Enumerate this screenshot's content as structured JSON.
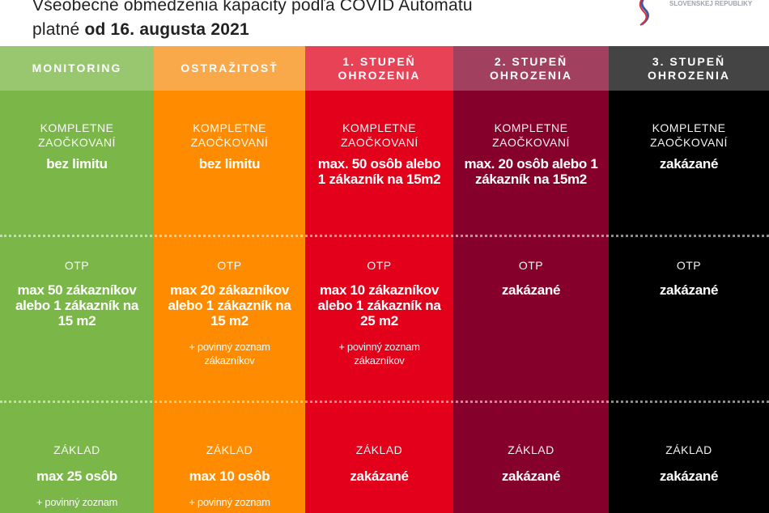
{
  "title": {
    "line1": "Všeobecné obmedzenia kapacity podľa COVID Automatu",
    "line2_prefix": "platné ",
    "line2_bold": "od 16. augusta 2021"
  },
  "logo": {
    "text": "SLOVENSKEJ REPUBLIKY"
  },
  "columns": [
    {
      "header": "MONITORING",
      "header_color": "#98c76f",
      "body_color": "#7ab648",
      "s1_label": "KOMPLETNE ZAOČKOVANÍ",
      "s1_value": "bez limitu",
      "s2_label": "OTP",
      "s2_value": "max 50 zákazníkov alebo 1 zákazník na 15 m2",
      "s2_note": "",
      "s3_label": "ZÁKLAD",
      "s3_value": "max 25 osôb",
      "s3_note": "+  povinný zoznam"
    },
    {
      "header": "OSTRAŽITOSŤ",
      "header_color": "#f9a84a",
      "body_color": "#ff8c00",
      "s1_label": "KOMPLETNE ZAOČKOVANÍ",
      "s1_value": "bez limitu",
      "s2_label": "OTP",
      "s2_value": "max 20 zákazníkov alebo 1 zákazník na 15 m2",
      "s2_note": "+ povinný zoznam zákazníkov",
      "s3_label": "ZÁKLAD",
      "s3_value": "max 10 osôb",
      "s3_note": "+  povinný zoznam"
    },
    {
      "header": "1. STUPEŇ OHROZENIA",
      "header_color": "#e84257",
      "body_color": "#e2001a",
      "s1_label": "KOMPLETNE ZAOČKOVANÍ",
      "s1_value": "max. 50 osôb alebo 1 zákazník na 15m2",
      "s2_label": "OTP",
      "s2_value": "max 10 zákazníkov alebo 1 zákazník na 25 m2",
      "s2_note": "+ povinný zoznam zákazníkov",
      "s3_label": "ZÁKLAD",
      "s3_value": "zakázané",
      "s3_note": ""
    },
    {
      "header": "2. STUPEŇ OHROZENIA",
      "header_color": "#a24060",
      "body_color": "#85002a",
      "s1_label": "KOMPLETNE ZAOČKOVANÍ",
      "s1_value": "max. 20 osôb alebo 1 zákazník na 15m2",
      "s2_label": "OTP",
      "s2_value": "zakázané",
      "s2_note": "",
      "s3_label": "ZÁKLAD",
      "s3_value": "zakázané",
      "s3_note": ""
    },
    {
      "header": "3. STUPEŇ OHROZENIA",
      "header_color": "#444444",
      "body_color": "#000000",
      "s1_label": "KOMPLETNE ZAOČKOVANÍ",
      "s1_value": "zakázané",
      "s2_label": "OTP",
      "s2_value": "zakázané",
      "s2_note": "",
      "s3_label": "ZÁKLAD",
      "s3_value": "zakázané",
      "s3_note": ""
    }
  ]
}
